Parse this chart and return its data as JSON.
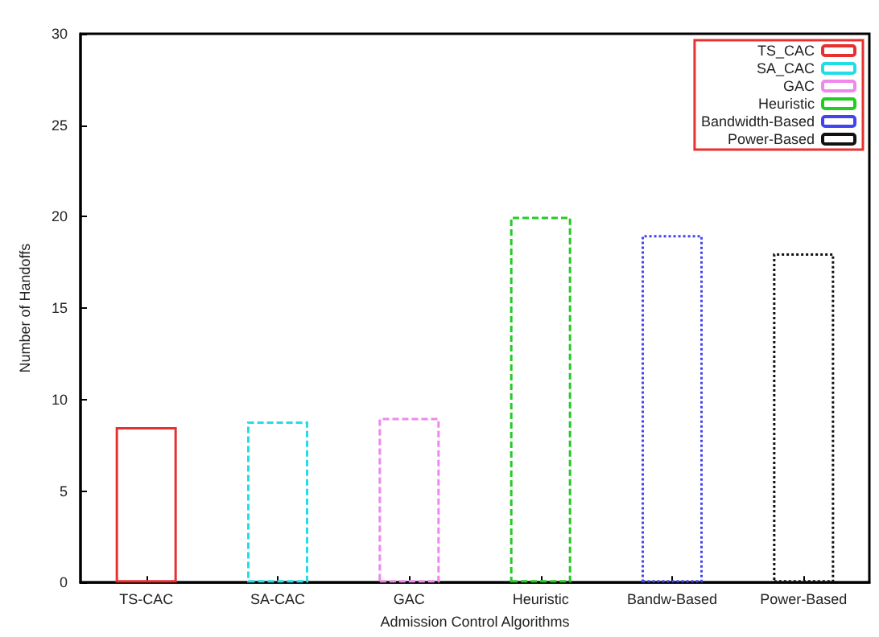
{
  "chart_data": {
    "type": "bar",
    "xlabel": "Admission Control Algorithms",
    "ylabel": "Number of Handoffs",
    "categories": [
      "TS-CAC",
      "SA-CAC",
      "GAC",
      "Heuristic",
      "Bandw-Based",
      "Power-Based"
    ],
    "series": [
      {
        "name": "TS_CAC",
        "color": "#e8302e",
        "line_style": "solid",
        "values": [
          8.5,
          null,
          null,
          null,
          null,
          null
        ]
      },
      {
        "name": "SA_CAC",
        "color": "#22dde8",
        "line_style": "dashed",
        "values": [
          null,
          8.8,
          null,
          null,
          null,
          null
        ]
      },
      {
        "name": "GAC",
        "color": "#ee88ee",
        "line_style": "dashed",
        "values": [
          null,
          null,
          9,
          null,
          null,
          null
        ]
      },
      {
        "name": "Heuristic",
        "color": "#22cc22",
        "line_style": "dashed",
        "values": [
          null,
          null,
          null,
          20,
          null,
          null
        ]
      },
      {
        "name": "Bandwidth-Based",
        "color": "#4444ee",
        "line_style": "dotted",
        "values": [
          null,
          null,
          null,
          null,
          19,
          null
        ]
      },
      {
        "name": "Power-Based",
        "color": "#111111",
        "line_style": "dotted",
        "values": [
          null,
          null,
          null,
          null,
          null,
          18
        ]
      }
    ],
    "ylim": [
      0,
      30
    ],
    "yticks": [
      0,
      5,
      10,
      15,
      20,
      25,
      30
    ],
    "grid": false,
    "legend": "top right"
  }
}
